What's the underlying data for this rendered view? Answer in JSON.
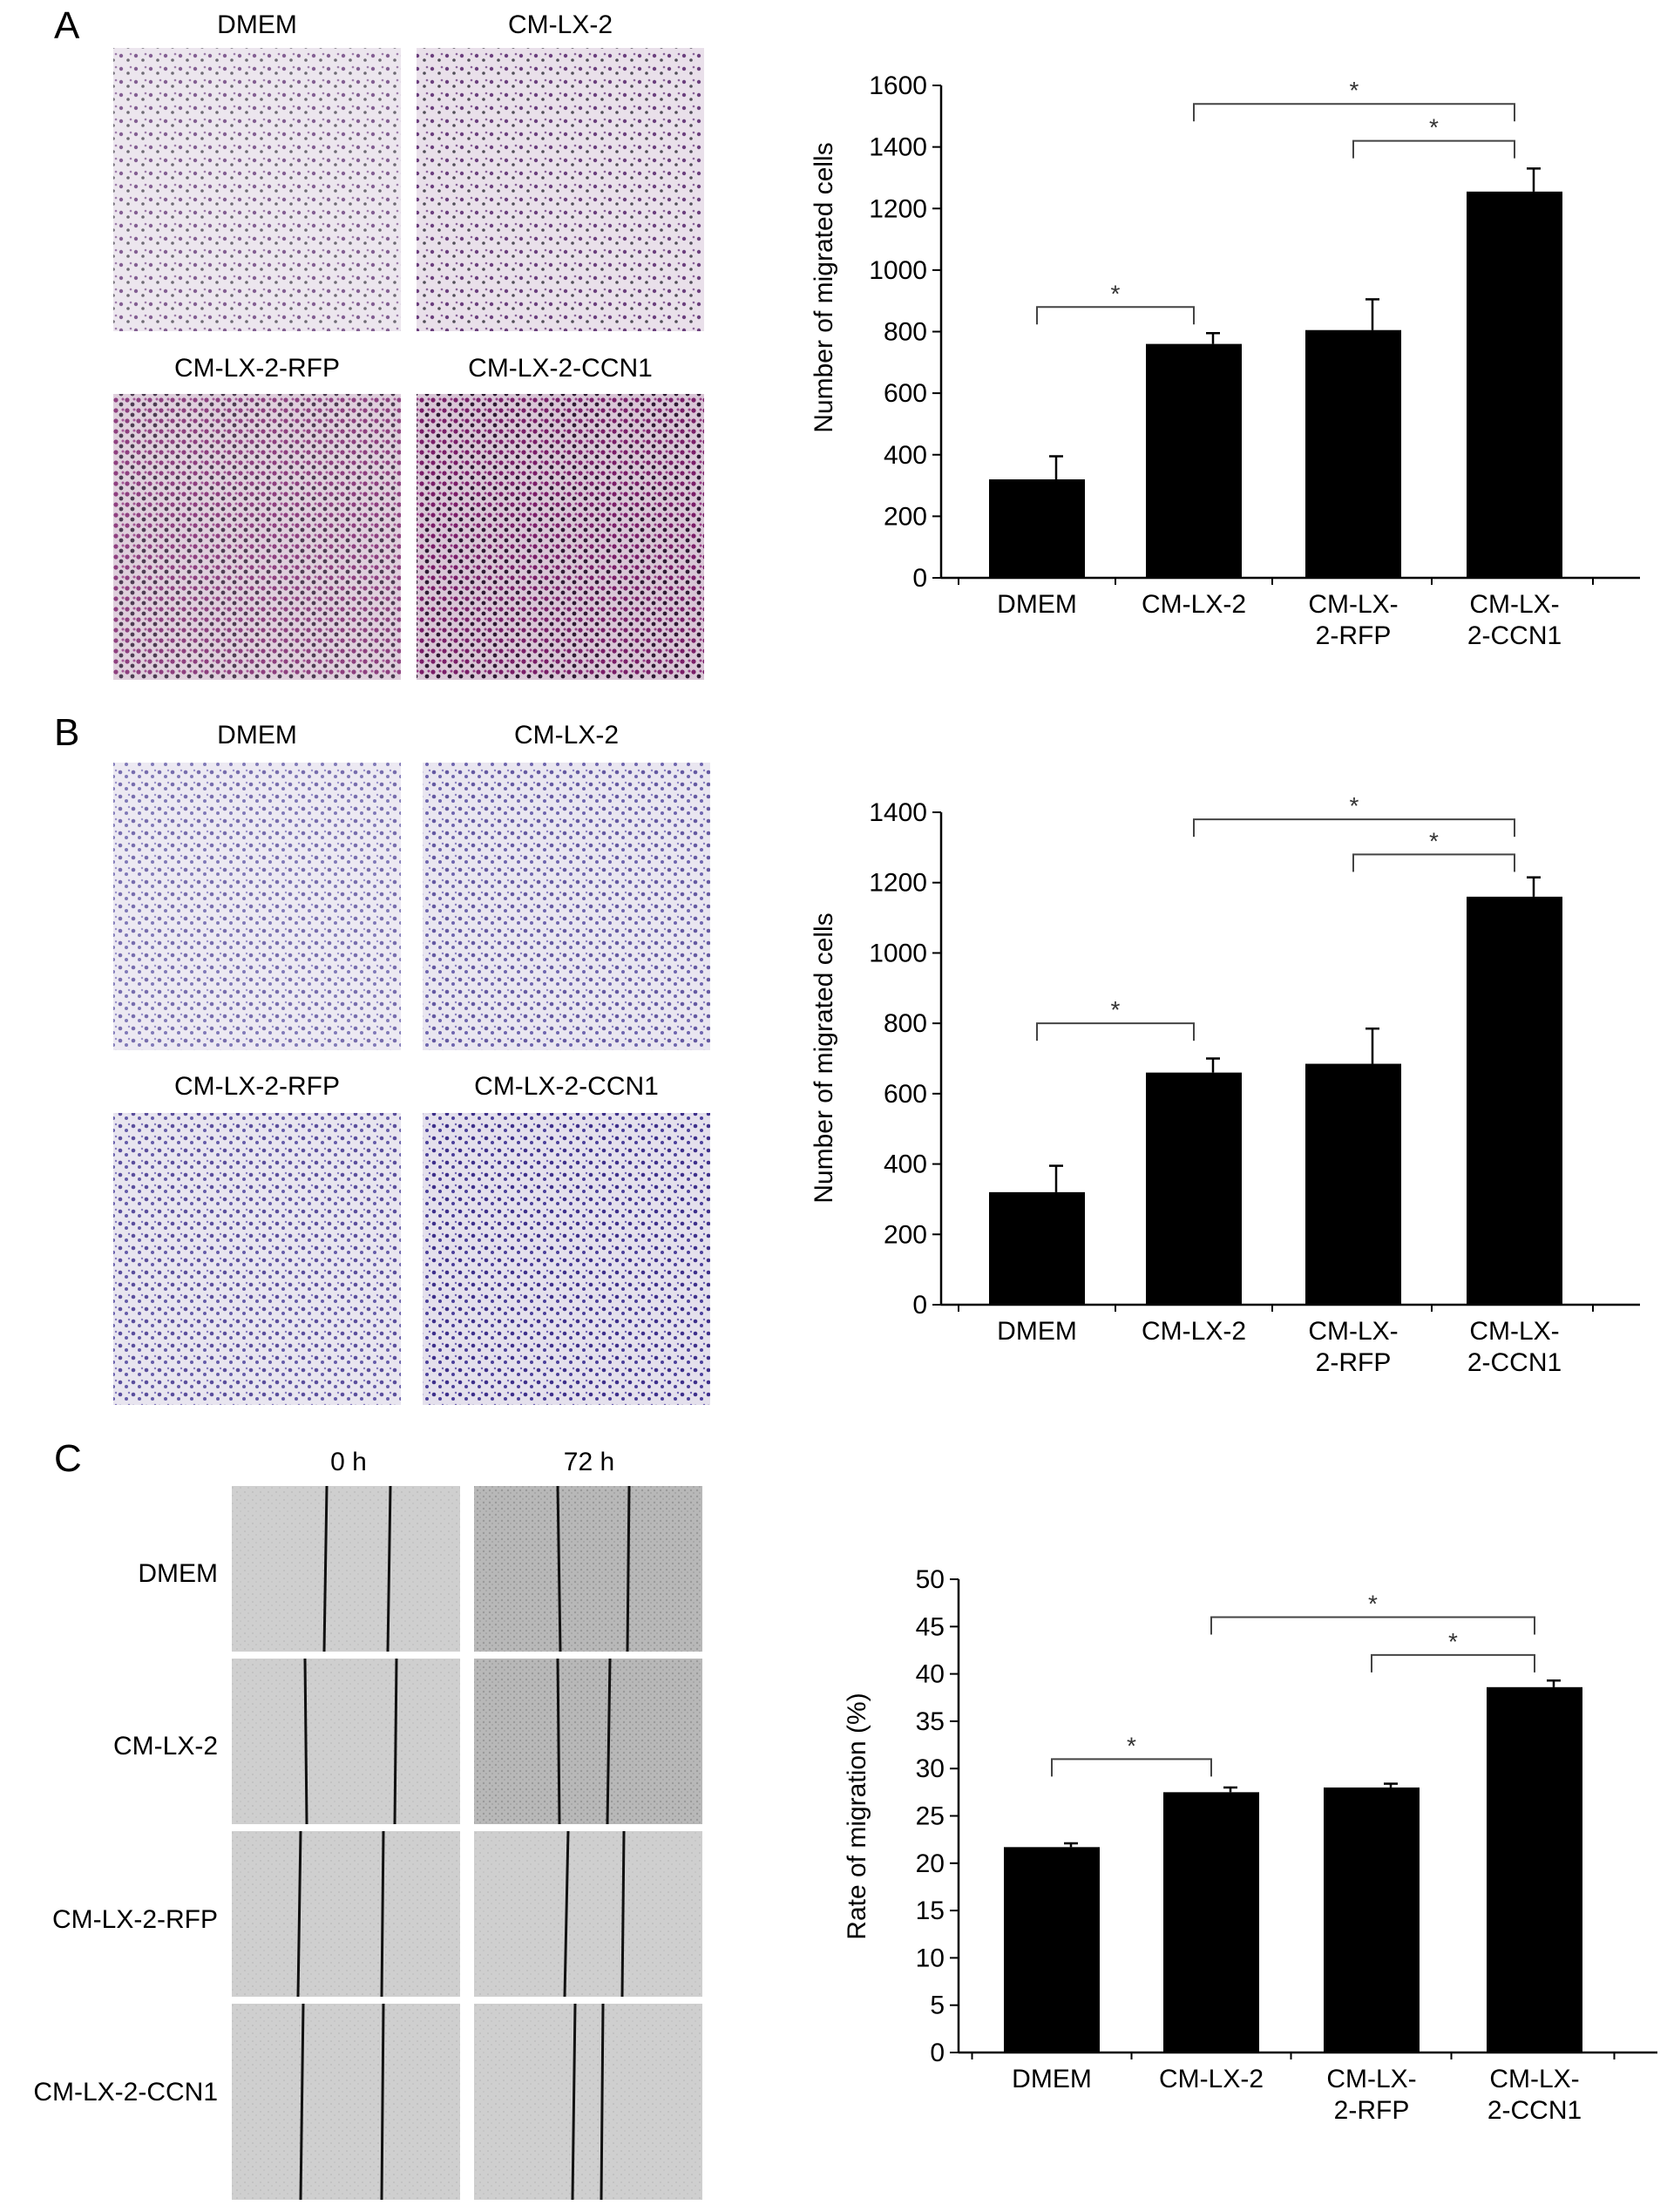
{
  "figure": {
    "panels": [
      {
        "letter": "A",
        "images": [
          {
            "label": "DMEM",
            "stain": "purple",
            "density": 0.35
          },
          {
            "label": "CM-LX-2",
            "stain": "purple",
            "density": 0.55
          },
          {
            "label": "CM-LX-2-RFP",
            "stain": "magenta",
            "density": 0.75
          },
          {
            "label": "CM-LX-2-CCN1",
            "stain": "magenta",
            "density": 1.0
          }
        ]
      },
      {
        "letter": "B",
        "images": [
          {
            "label": "DMEM",
            "stain": "violet",
            "density": 0.45
          },
          {
            "label": "CM-LX-2",
            "stain": "violet",
            "density": 0.6
          },
          {
            "label": "CM-LX-2-RFP",
            "stain": "violet",
            "density": 0.7
          },
          {
            "label": "CM-LX-2-CCN1",
            "stain": "violet",
            "density": 0.95
          }
        ]
      },
      {
        "letter": "C",
        "column_headers": [
          "0 h",
          "72 h"
        ],
        "row_labels": [
          "DMEM",
          "CM-LX-2",
          "CM-LX-2-RFP",
          "CM-LX-2-CCN1"
        ]
      }
    ]
  },
  "colors": {
    "bar": "#000000",
    "star": "#333333",
    "stain_purple": "#5a2a6e",
    "stain_magenta": "#7a1d68",
    "stain_violet": "#3d2f8a",
    "wound_bg": "#cfcfcf"
  },
  "chart_data": [
    {
      "type": "bar",
      "categories": [
        "DMEM",
        "CM-LX-2",
        "CM-LX-2-RFP",
        "CM-LX-2-CCN1"
      ],
      "category_lines": [
        [
          "DMEM"
        ],
        [
          "CM-LX-2"
        ],
        [
          "CM-LX-",
          "2-RFP"
        ],
        [
          "CM-LX-",
          "2-CCN1"
        ]
      ],
      "values": [
        320,
        760,
        805,
        1255
      ],
      "errors": [
        75,
        35,
        100,
        75
      ],
      "ylabel": "Number of migrated cells",
      "ylim": [
        0,
        1600
      ],
      "yticks": [
        0,
        200,
        400,
        600,
        800,
        1000,
        1200,
        1400,
        1600
      ],
      "significance": [
        {
          "from": 0,
          "to": 1,
          "label": "*",
          "level": 880
        },
        {
          "from": 2,
          "to": 3,
          "label": "*",
          "level": 1420
        },
        {
          "from": 1,
          "to": 3,
          "label": "*",
          "level": 1540
        }
      ]
    },
    {
      "type": "bar",
      "categories": [
        "DMEM",
        "CM-LX-2",
        "CM-LX-2-RFP",
        "CM-LX-2-CCN1"
      ],
      "category_lines": [
        [
          "DMEM"
        ],
        [
          "CM-LX-2"
        ],
        [
          "CM-LX-",
          "2-RFP"
        ],
        [
          "CM-LX-",
          "2-CCN1"
        ]
      ],
      "values": [
        320,
        660,
        685,
        1160
      ],
      "errors": [
        75,
        40,
        100,
        55
      ],
      "ylabel": "Number of migrated cells",
      "ylim": [
        0,
        1400
      ],
      "yticks": [
        0,
        200,
        400,
        600,
        800,
        1000,
        1200,
        1400
      ],
      "significance": [
        {
          "from": 0,
          "to": 1,
          "label": "*",
          "level": 800
        },
        {
          "from": 2,
          "to": 3,
          "label": "*",
          "level": 1280
        },
        {
          "from": 1,
          "to": 3,
          "label": "*",
          "level": 1380
        }
      ]
    },
    {
      "type": "bar",
      "categories": [
        "DMEM",
        "CM-LX-2",
        "CM-LX-2-RFP",
        "CM-LX-2-CCN1"
      ],
      "category_lines": [
        [
          "DMEM"
        ],
        [
          "CM-LX-2"
        ],
        [
          "CM-LX-",
          "2-RFP"
        ],
        [
          "CM-LX-",
          "2-CCN1"
        ]
      ],
      "values": [
        21.7,
        27.5,
        28.0,
        38.6
      ],
      "errors": [
        0.4,
        0.5,
        0.4,
        0.7
      ],
      "ylabel": "Rate of migration (%)",
      "ylim": [
        0,
        50
      ],
      "yticks": [
        0,
        5,
        10,
        15,
        20,
        25,
        30,
        35,
        40,
        45,
        50
      ],
      "significance": [
        {
          "from": 0,
          "to": 1,
          "label": "*",
          "level": 31
        },
        {
          "from": 2,
          "to": 3,
          "label": "*",
          "level": 42
        },
        {
          "from": 1,
          "to": 3,
          "label": "*",
          "level": 46
        }
      ]
    }
  ]
}
